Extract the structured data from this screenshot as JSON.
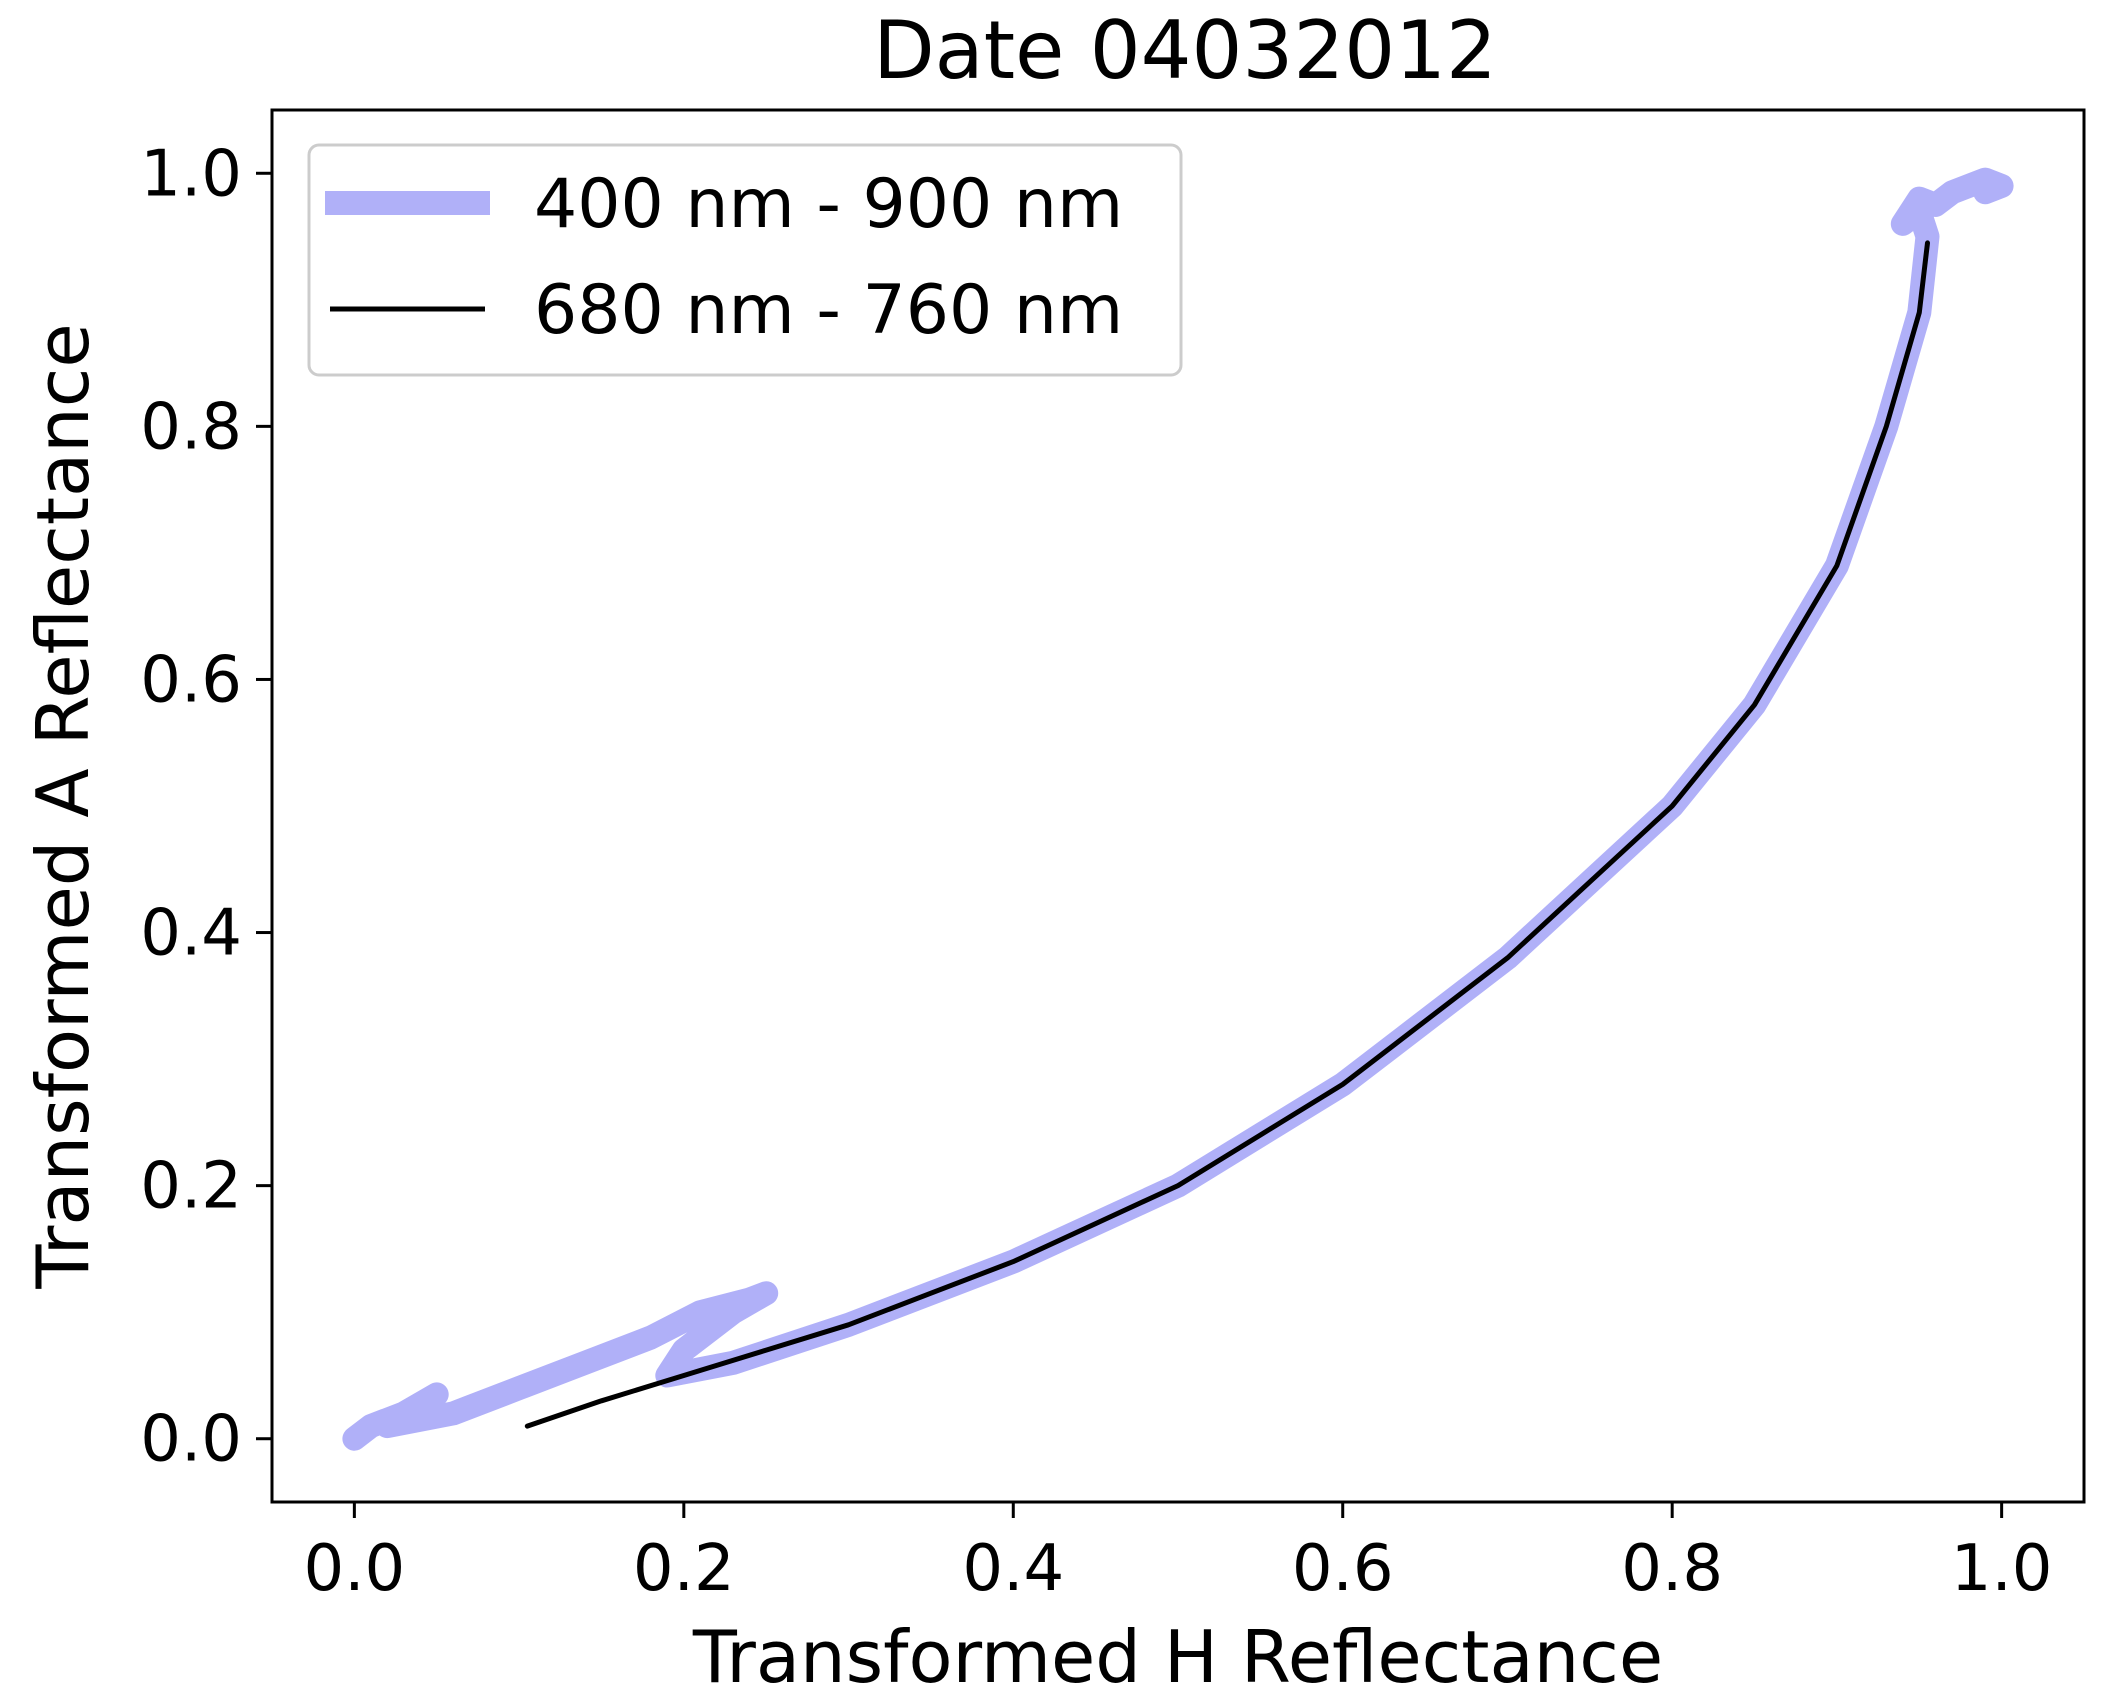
{
  "chart_data": {
    "type": "line",
    "title": "Date 04032012",
    "xlabel": "Transformed H Reflectance",
    "ylabel": "Transformed A Reflectance",
    "xlim": [
      -0.05,
      1.05
    ],
    "ylim": [
      -0.05,
      1.05
    ],
    "xticks": [
      0.0,
      0.2,
      0.4,
      0.6,
      0.8,
      1.0
    ],
    "xtick_labels": [
      "0.0",
      "0.2",
      "0.4",
      "0.6",
      "0.8",
      "1.0"
    ],
    "yticks": [
      0.0,
      0.2,
      0.4,
      0.6,
      0.8,
      1.0
    ],
    "ytick_labels": [
      "0.0",
      "0.2",
      "0.4",
      "0.6",
      "0.8",
      "1.0"
    ],
    "grid": false,
    "legend_position": "top-left",
    "series": [
      {
        "name": "400 nm - 900 nm",
        "color": "#b0b0f8",
        "style": "thick",
        "x": [
          0.0,
          0.01,
          0.03,
          0.05,
          0.02,
          0.06,
          0.1,
          0.14,
          0.18,
          0.21,
          0.24,
          0.25,
          0.23,
          0.2,
          0.19,
          0.23,
          0.3,
          0.4,
          0.5,
          0.6,
          0.7,
          0.8,
          0.85,
          0.9,
          0.93,
          0.95,
          0.955,
          0.95,
          0.94,
          0.95,
          0.96,
          0.97,
          0.98,
          0.99,
          1.0,
          0.99
        ],
        "y": [
          0.0,
          0.01,
          0.02,
          0.035,
          0.01,
          0.02,
          0.04,
          0.06,
          0.08,
          0.1,
          0.11,
          0.115,
          0.1,
          0.07,
          0.05,
          0.06,
          0.09,
          0.14,
          0.2,
          0.28,
          0.38,
          0.5,
          0.58,
          0.69,
          0.8,
          0.89,
          0.95,
          0.97,
          0.96,
          0.98,
          0.975,
          0.985,
          0.99,
          0.995,
          0.99,
          0.985
        ]
      },
      {
        "name": "680 nm - 760 nm",
        "color": "#000000",
        "style": "thin",
        "x": [
          0.105,
          0.15,
          0.2,
          0.25,
          0.3,
          0.35,
          0.4,
          0.45,
          0.5,
          0.55,
          0.6,
          0.65,
          0.7,
          0.75,
          0.8,
          0.85,
          0.9,
          0.93,
          0.95,
          0.955
        ],
        "y": [
          0.01,
          0.03,
          0.05,
          0.07,
          0.09,
          0.115,
          0.14,
          0.17,
          0.2,
          0.24,
          0.28,
          0.33,
          0.38,
          0.44,
          0.5,
          0.58,
          0.69,
          0.8,
          0.89,
          0.945
        ]
      }
    ]
  }
}
